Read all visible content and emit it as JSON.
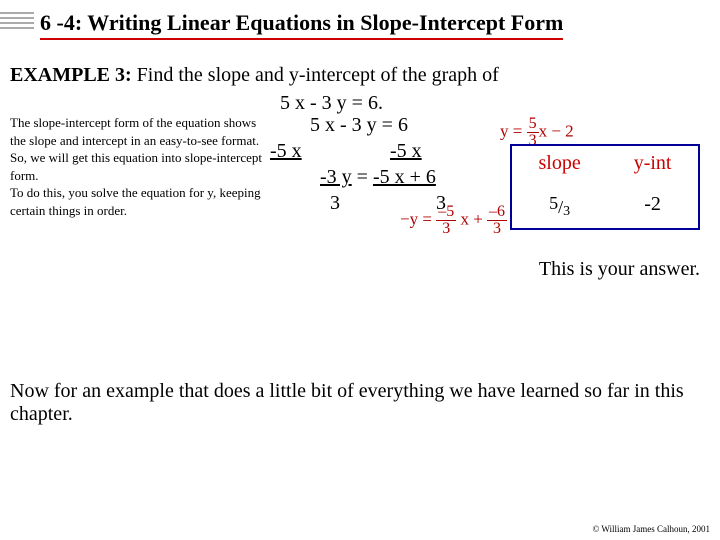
{
  "title": "6 -4:  Writing Linear Equations in Slope-Intercept Form",
  "example_label": "EXAMPLE 3:",
  "example_text": "Find the slope and y-intercept of the graph of",
  "given_equation": "5 x - 3 y = 6.",
  "sidetext": "The slope-intercept form of the equation shows the slope and intercept in an easy-to-see format.\nSo, we will get this equation into slope-intercept form.\nTo do this, you solve the equation for y, keeping certain things in order.",
  "work_line1": "5 x - 3 y = 6",
  "work_sub_left": "-5 x",
  "work_sub_right": "-5 x",
  "work_line3_left": "-3 y",
  "work_line3_right": "-5 x + 6",
  "work_div_left": "3",
  "work_div_right": "3",
  "red_eq1_prefix": "y = ",
  "red_eq1_num": "5",
  "red_eq1_den": "3",
  "red_eq1_suffix": "x − 2",
  "red_eq2_prefix": "−y = ",
  "red_eq2_num1": "–5",
  "red_eq2_den1": "3",
  "red_eq2_mid": " x + ",
  "red_eq2_num2": "–6",
  "red_eq2_den2": "3",
  "box_slope_label": "slope",
  "box_yint_label": "y-int",
  "box_slope_value": "5/3",
  "box_yint_value": "-2",
  "answer_text": "This is your answer.",
  "closing_text": "Now for an example that does a little bit of everything we have learned so far in this chapter.",
  "copyright": "© William James Calhoun, 2001",
  "colors": {
    "rule": "#cc0000",
    "box_border": "#000099",
    "red_text": "#b00000"
  }
}
